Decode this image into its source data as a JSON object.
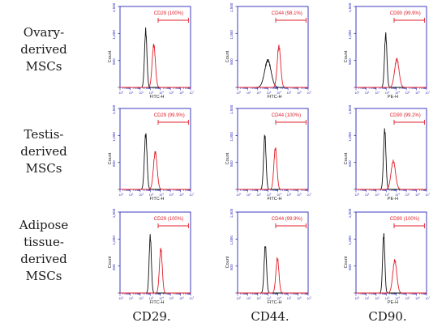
{
  "rows": [
    {
      "label_lines": [
        "Ovary-",
        "derived",
        "MSCs"
      ]
    },
    {
      "label_lines": [
        "Testis-",
        "derived",
        "MSCs"
      ]
    },
    {
      "label_lines": [
        "Adipose",
        "tissue-",
        "derived",
        "MSCs"
      ]
    }
  ],
  "columns": [
    {
      "caption": "CD29."
    },
    {
      "caption": "CD44."
    },
    {
      "caption": "CD90."
    }
  ],
  "colors": {
    "axis": "#2a2ab8",
    "control": "#111111",
    "marker": "#e0202a"
  },
  "chart_data": [
    {
      "type": "area",
      "row": 0,
      "col": 0,
      "gate_label": "CD29 (100%)",
      "xlabel": "FITC-H",
      "ylabel": "Count",
      "yticks": [
        "0",
        "500",
        "1,000",
        "1,500"
      ],
      "xscale": "log",
      "xlim": [
        1,
        10000000
      ],
      "series": [
        {
          "role": "isotype-control",
          "color": "#111111",
          "peak_log10": 2.55,
          "peak_height": 1050,
          "width": 0.12
        },
        {
          "role": "marker-stained",
          "color": "#e0202a",
          "peak_log10": 3.35,
          "peak_height": 790,
          "width": 0.16
        }
      ]
    },
    {
      "type": "area",
      "row": 0,
      "col": 1,
      "gate_label": "CD44 (98.1%)",
      "xlabel": "FITC-H",
      "ylabel": "Count",
      "yticks": [
        "0",
        "500",
        "1,000",
        "1,500"
      ],
      "xscale": "log",
      "xlim": [
        1,
        10000000
      ],
      "series": [
        {
          "role": "isotype-control",
          "color": "#111111",
          "peak_log10": 3.0,
          "peak_height": 500,
          "width": 0.32
        },
        {
          "role": "marker-stained",
          "color": "#e0202a",
          "peak_log10": 4.1,
          "peak_height": 760,
          "width": 0.17
        }
      ]
    },
    {
      "type": "area",
      "row": 0,
      "col": 2,
      "gate_label": "CD90 (99.9%)",
      "xlabel": "PE-H",
      "ylabel": "Count",
      "yticks": [
        "0",
        "500",
        "1,000",
        "1,500"
      ],
      "xscale": "log",
      "xlim": [
        1,
        10000000
      ],
      "series": [
        {
          "role": "isotype-control",
          "color": "#111111",
          "peak_log10": 2.95,
          "peak_height": 980,
          "width": 0.12
        },
        {
          "role": "marker-stained",
          "color": "#e0202a",
          "peak_log10": 4.05,
          "peak_height": 520,
          "width": 0.22
        }
      ]
    },
    {
      "type": "area",
      "row": 1,
      "col": 0,
      "gate_label": "CD29 (99.9%)",
      "xlabel": "FITC-H",
      "ylabel": "Count",
      "yticks": [
        "0",
        "500",
        "1,000",
        "1,500"
      ],
      "xscale": "log",
      "xlim": [
        1,
        10000000
      ],
      "series": [
        {
          "role": "isotype-control",
          "color": "#111111",
          "peak_log10": 2.55,
          "peak_height": 1020,
          "width": 0.13
        },
        {
          "role": "marker-stained",
          "color": "#e0202a",
          "peak_log10": 3.5,
          "peak_height": 690,
          "width": 0.18
        }
      ]
    },
    {
      "type": "area",
      "row": 1,
      "col": 1,
      "gate_label": "CD44 (100%)",
      "xlabel": "FITC-H",
      "ylabel": "Count",
      "yticks": [
        "0",
        "500",
        "1,000",
        "1,500"
      ],
      "xscale": "log",
      "xlim": [
        1,
        10000000
      ],
      "series": [
        {
          "role": "isotype-control",
          "color": "#111111",
          "peak_log10": 2.7,
          "peak_height": 1000,
          "width": 0.12
        },
        {
          "role": "marker-stained",
          "color": "#e0202a",
          "peak_log10": 3.75,
          "peak_height": 760,
          "width": 0.15
        }
      ]
    },
    {
      "type": "area",
      "row": 1,
      "col": 2,
      "gate_label": "CD90 (99.2%)",
      "xlabel": "PE-H",
      "ylabel": "Count",
      "yticks": [
        "0",
        "500",
        "1,000",
        "1,500"
      ],
      "xscale": "log",
      "xlim": [
        1,
        10000000
      ],
      "series": [
        {
          "role": "isotype-control",
          "color": "#111111",
          "peak_log10": 2.85,
          "peak_height": 1100,
          "width": 0.12
        },
        {
          "role": "marker-stained",
          "color": "#e0202a",
          "peak_log10": 3.7,
          "peak_height": 520,
          "width": 0.22
        }
      ]
    },
    {
      "type": "area",
      "row": 2,
      "col": 0,
      "gate_label": "CD29 (100%)",
      "xlabel": "FITC-H",
      "ylabel": "Count",
      "yticks": [
        "0",
        "500",
        "1,000",
        "1,500"
      ],
      "xscale": "log",
      "xlim": [
        1,
        10000000
      ],
      "series": [
        {
          "role": "isotype-control",
          "color": "#111111",
          "peak_log10": 3.0,
          "peak_height": 1050,
          "width": 0.11
        },
        {
          "role": "marker-stained",
          "color": "#e0202a",
          "peak_log10": 4.05,
          "peak_height": 820,
          "width": 0.14
        }
      ]
    },
    {
      "type": "area",
      "row": 2,
      "col": 1,
      "gate_label": "CD44 (99.9%)",
      "xlabel": "FITC-H",
      "ylabel": "Count",
      "yticks": [
        "0",
        "500",
        "1,000",
        "1,500"
      ],
      "xscale": "log",
      "xlim": [
        1,
        10000000
      ],
      "series": [
        {
          "role": "isotype-control",
          "color": "#111111",
          "peak_log10": 2.75,
          "peak_height": 880,
          "width": 0.12
        },
        {
          "role": "marker-stained",
          "color": "#e0202a",
          "peak_log10": 3.95,
          "peak_height": 640,
          "width": 0.15
        }
      ]
    },
    {
      "type": "area",
      "row": 2,
      "col": 2,
      "gate_label": "CD90 (100%)",
      "xlabel": "PE-H",
      "ylabel": "Count",
      "yticks": [
        "0",
        "500",
        "1,000",
        "1,500"
      ],
      "xscale": "log",
      "xlim": [
        1,
        10000000
      ],
      "series": [
        {
          "role": "isotype-control",
          "color": "#111111",
          "peak_log10": 2.75,
          "peak_height": 1080,
          "width": 0.11
        },
        {
          "role": "marker-stained",
          "color": "#e0202a",
          "peak_log10": 3.85,
          "peak_height": 600,
          "width": 0.2
        }
      ]
    }
  ]
}
